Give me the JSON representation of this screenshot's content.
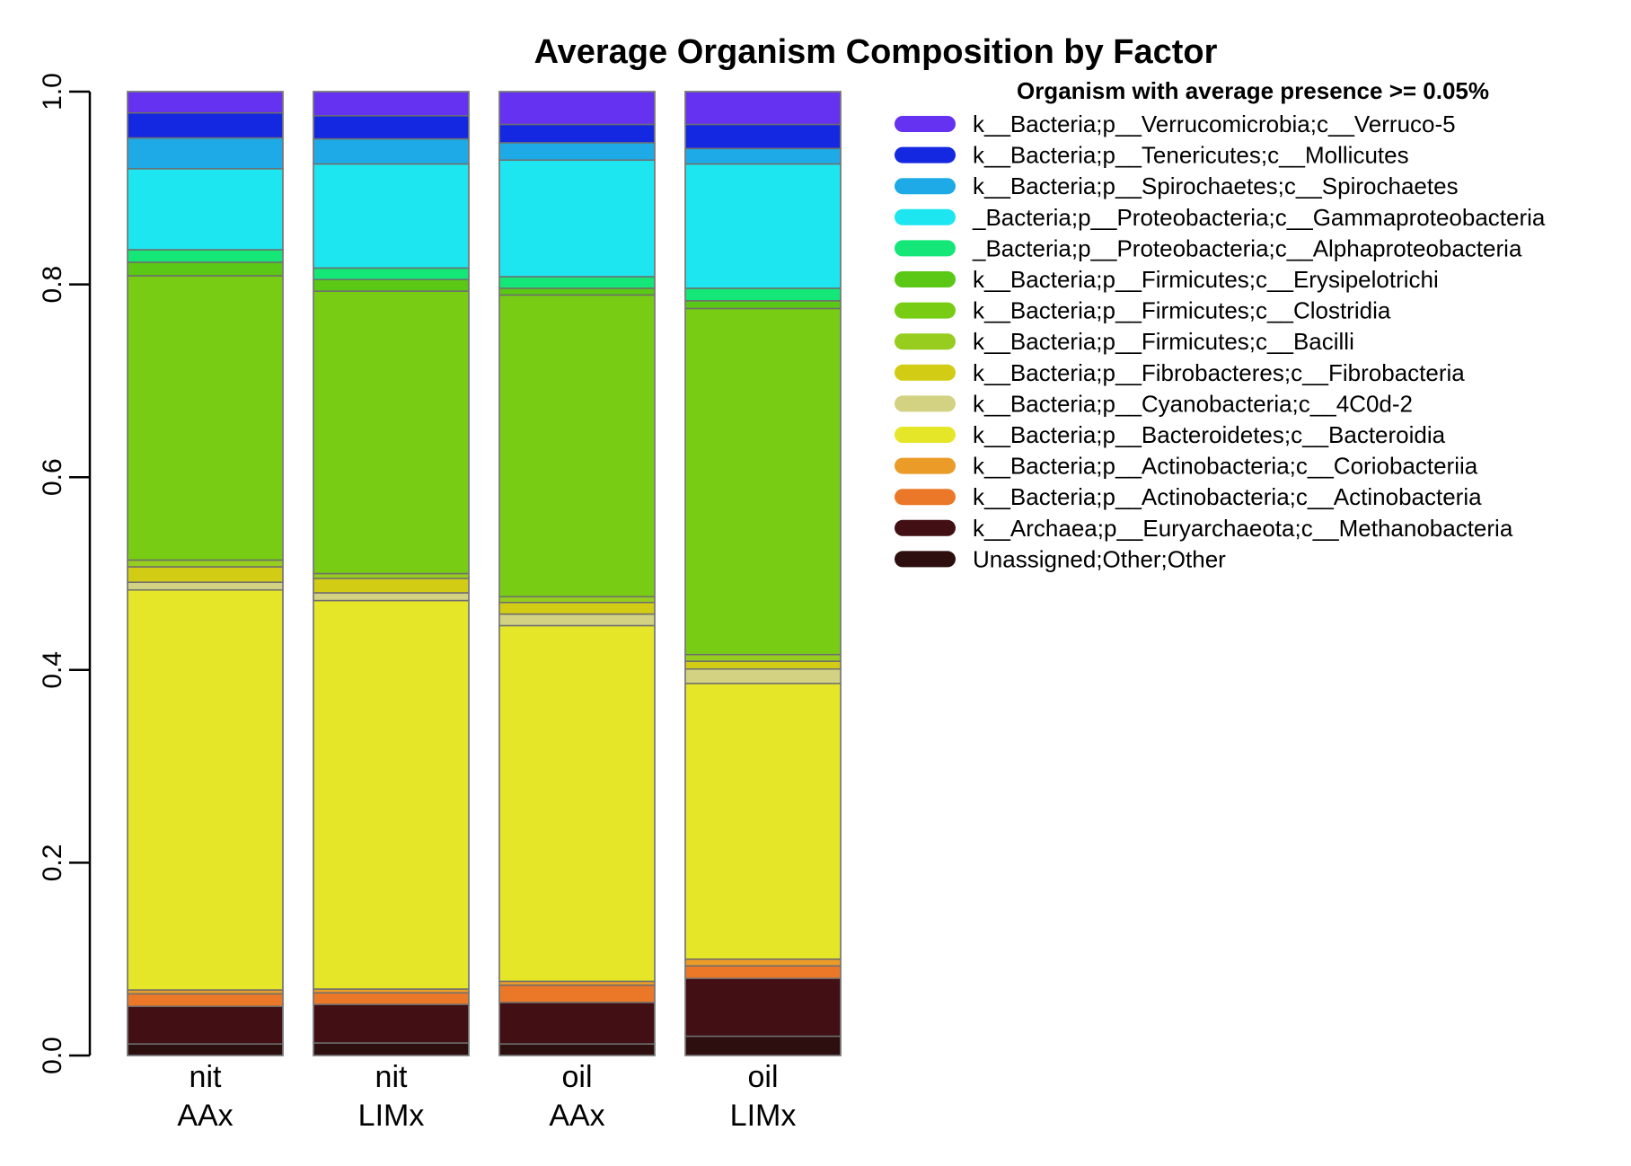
{
  "chart_data": {
    "type": "bar",
    "stacked": true,
    "title": "Average Organism Composition by Factor",
    "xlabel": "",
    "ylabel": "",
    "ylim": [
      0,
      1.0
    ],
    "yticks": [
      "0.0",
      "0.2",
      "0.4",
      "0.6",
      "0.8",
      "1.0"
    ],
    "ytick_values": [
      0,
      0.2,
      0.4,
      0.6,
      0.8,
      1.0
    ],
    "grid": false,
    "categories": [
      {
        "line1": "nit",
        "line2": "AAx"
      },
      {
        "line1": "nit",
        "line2": "LIMx"
      },
      {
        "line1": "oil",
        "line2": "AAx"
      },
      {
        "line1": "oil",
        "line2": "LIMx"
      }
    ],
    "legend": {
      "title": "Organism with average presence >= 0.05%",
      "placement": "top-right"
    },
    "series": [
      {
        "name": "k__Bacteria;p__Verrucomicrobia;c__Verruco-5",
        "color": "#6432f0",
        "values": [
          0.022,
          0.025,
          0.034,
          0.034
        ]
      },
      {
        "name": "k__Bacteria;p__Tenericutes;c__Mollicutes",
        "color": "#1428e1",
        "values": [
          0.026,
          0.024,
          0.019,
          0.025
        ]
      },
      {
        "name": "k__Bacteria;p__Spirochaetes;c__Spirochaetes",
        "color": "#1eaae6",
        "values": [
          0.032,
          0.026,
          0.018,
          0.016
        ]
      },
      {
        "name": "_Bacteria;p__Proteobacteria;c__Gammaproteobacteria",
        "color": "#1ee6f0",
        "values": [
          0.084,
          0.108,
          0.121,
          0.129
        ]
      },
      {
        "name": "_Bacteria;p__Proteobacteria;c__Alphaproteobacteria",
        "color": "#14e678",
        "values": [
          0.013,
          0.012,
          0.012,
          0.013
        ]
      },
      {
        "name": "k__Bacteria;p__Firmicutes;c__Erysipelotrichi",
        "color": "#5ac814",
        "values": [
          0.014,
          0.012,
          0.007,
          0.008
        ]
      },
      {
        "name": "k__Bacteria;p__Firmicutes;c__Clostridia",
        "color": "#78cd14",
        "values": [
          0.295,
          0.293,
          0.313,
          0.359
        ]
      },
      {
        "name": "k__Bacteria;p__Firmicutes;c__Bacilli",
        "color": "#96cd1e",
        "values": [
          0.007,
          0.005,
          0.006,
          0.007
        ]
      },
      {
        "name": "k__Bacteria;p__Fibrobacteres;c__Fibrobacteria",
        "color": "#d2cd14",
        "values": [
          0.016,
          0.015,
          0.012,
          0.008
        ]
      },
      {
        "name": "k__Bacteria;p__Cyanobacteria;c__4C0d-2",
        "color": "#d2d282",
        "values": [
          0.008,
          0.008,
          0.012,
          0.015
        ]
      },
      {
        "name": "k__Bacteria;p__Bacteroidetes;c__Bacteroidia",
        "color": "#e6e628",
        "values": [
          0.415,
          0.403,
          0.369,
          0.286
        ]
      },
      {
        "name": "k__Bacteria;p__Actinobacteria;c__Coriobacteriia",
        "color": "#eb9b28",
        "values": [
          0.004,
          0.004,
          0.004,
          0.007
        ]
      },
      {
        "name": "k__Bacteria;p__Actinobacteria;c__Actinobacteria",
        "color": "#eb7828",
        "values": [
          0.013,
          0.012,
          0.018,
          0.013
        ]
      },
      {
        "name": "k__Archaea;p__Euryarchaeota;c__Methanobacteria",
        "color": "#410f14",
        "values": [
          0.039,
          0.04,
          0.043,
          0.06
        ]
      },
      {
        "name": "Unassigned;Other;Other",
        "color": "#2d0f0f",
        "values": [
          0.012,
          0.013,
          0.012,
          0.02
        ]
      }
    ]
  }
}
